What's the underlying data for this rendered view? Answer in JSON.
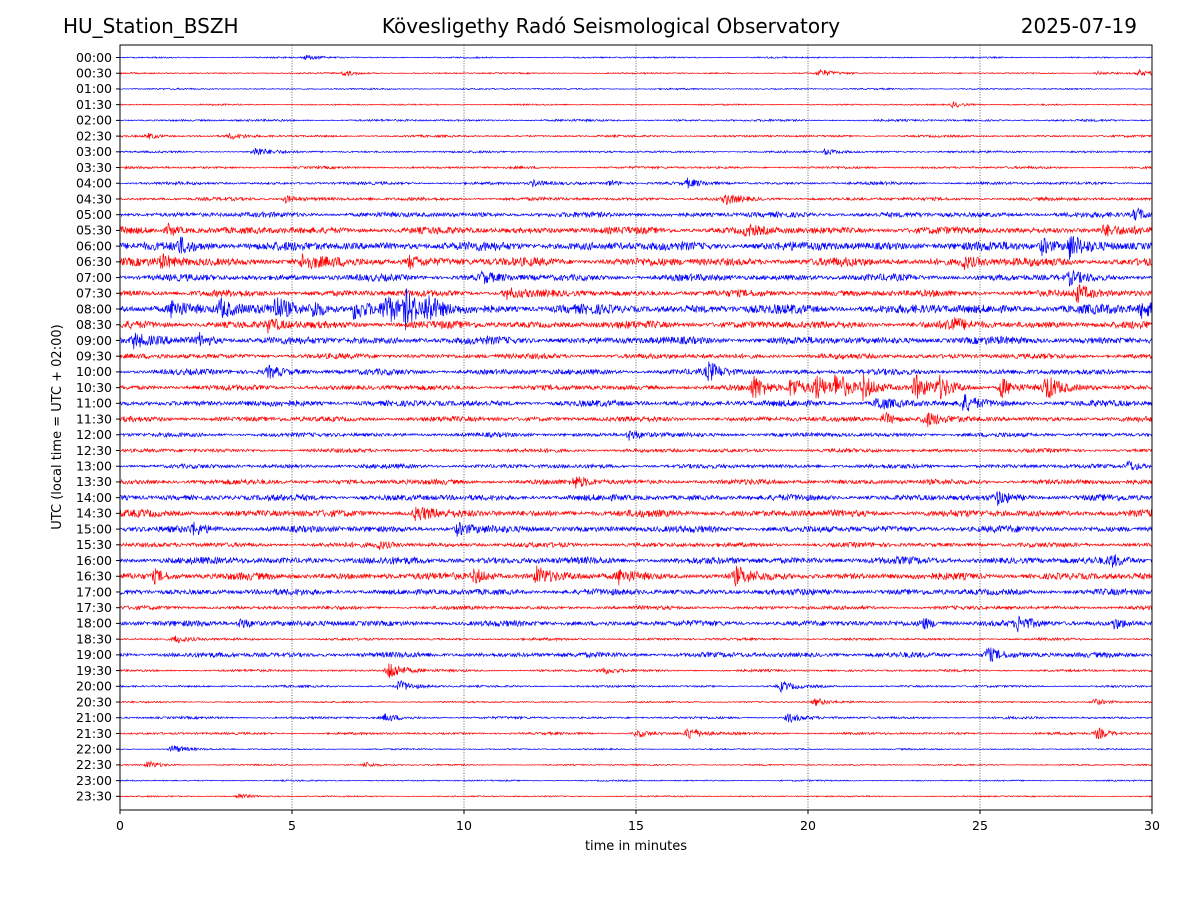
{
  "header": {
    "station": "HU_Station_BSZH",
    "title": "Kövesligethy Radó Seismological Observatory",
    "date": "2025-07-19"
  },
  "colors": {
    "even_rows": "#0000ff",
    "odd_rows": "#ff0000",
    "grid": "#000000"
  },
  "chart_data": {
    "type": "line",
    "title": "Kövesligethy Radó Seismological Observatory",
    "xlabel": "time in minutes",
    "ylabel": "UTC (local time = UTC + 02:00)",
    "xlim": [
      0,
      30
    ],
    "xticks": [
      0,
      5,
      10,
      15,
      20,
      25,
      30
    ],
    "xtick_labels": [
      "0",
      "5",
      "10",
      "15",
      "20",
      "25",
      "30"
    ],
    "grid": "vertical dotted lines at every 5 minutes",
    "rows": [
      "00:00",
      "00:30",
      "01:00",
      "01:30",
      "02:00",
      "02:30",
      "03:00",
      "03:30",
      "04:00",
      "04:30",
      "05:00",
      "05:30",
      "06:00",
      "06:30",
      "07:00",
      "07:30",
      "08:00",
      "08:30",
      "09:00",
      "09:30",
      "10:00",
      "10:30",
      "11:00",
      "11:30",
      "12:00",
      "12:30",
      "13:00",
      "13:30",
      "14:00",
      "14:30",
      "15:00",
      "15:30",
      "16:00",
      "16:30",
      "17:00",
      "17:30",
      "18:00",
      "18:30",
      "19:00",
      "19:30",
      "20:00",
      "20:30",
      "21:00",
      "21:30",
      "22:00",
      "22:30",
      "23:00",
      "23:30"
    ],
    "row_colors": "alternating blue (even rows) / red (odd rows)",
    "noise_level": [
      0.6,
      0.6,
      0.6,
      0.6,
      0.9,
      0.9,
      0.9,
      1.0,
      1.2,
      1.4,
      2.2,
      3.0,
      3.8,
      3.6,
      2.8,
      2.8,
      4.0,
      3.2,
      3.2,
      2.2,
      2.4,
      2.2,
      2.6,
      2.2,
      1.8,
      1.6,
      1.8,
      2.2,
      2.6,
      3.0,
      2.8,
      2.0,
      3.0,
      3.0,
      2.6,
      1.6,
      2.4,
      1.0,
      2.2,
      1.0,
      0.9,
      0.7,
      1.0,
      1.0,
      0.6,
      0.6,
      0.6,
      0.6
    ],
    "events": [
      {
        "row": "00:00",
        "minute": 5.4,
        "amplitude": 3
      },
      {
        "row": "00:30",
        "minute": 6.5,
        "amplitude": 3
      },
      {
        "row": "00:30",
        "minute": 20.3,
        "amplitude": 4
      },
      {
        "row": "00:30",
        "minute": 28.4,
        "amplitude": 2
      },
      {
        "row": "00:30",
        "minute": 29.6,
        "amplitude": 3
      },
      {
        "row": "01:30",
        "minute": 24.2,
        "amplitude": 3
      },
      {
        "row": "02:30",
        "minute": 0.8,
        "amplitude": 3
      },
      {
        "row": "02:30",
        "minute": 3.2,
        "amplitude": 3
      },
      {
        "row": "03:00",
        "minute": 3.9,
        "amplitude": 5
      },
      {
        "row": "03:00",
        "minute": 20.5,
        "amplitude": 3
      },
      {
        "row": "04:00",
        "minute": 12.0,
        "amplitude": 3
      },
      {
        "row": "04:00",
        "minute": 14.2,
        "amplitude": 3
      },
      {
        "row": "04:00",
        "minute": 16.5,
        "amplitude": 4
      },
      {
        "row": "04:30",
        "minute": 4.8,
        "amplitude": 4
      },
      {
        "row": "04:30",
        "minute": 17.6,
        "amplitude": 5
      },
      {
        "row": "05:00",
        "minute": 29.5,
        "amplitude": 7
      },
      {
        "row": "05:30",
        "minute": 1.4,
        "amplitude": 6
      },
      {
        "row": "05:30",
        "minute": 18.2,
        "amplitude": 5
      },
      {
        "row": "05:30",
        "minute": 28.6,
        "amplitude": 5
      },
      {
        "row": "06:00",
        "minute": 1.7,
        "amplitude": 7
      },
      {
        "row": "06:00",
        "minute": 26.8,
        "amplitude": 8
      },
      {
        "row": "06:00",
        "minute": 27.6,
        "amplitude": 12
      },
      {
        "row": "06:30",
        "minute": 1.2,
        "amplitude": 6
      },
      {
        "row": "06:30",
        "minute": 5.3,
        "amplitude": 7
      },
      {
        "row": "06:30",
        "minute": 8.4,
        "amplitude": 6
      },
      {
        "row": "06:30",
        "minute": 24.5,
        "amplitude": 6
      },
      {
        "row": "07:00",
        "minute": 10.5,
        "amplitude": 5
      },
      {
        "row": "07:00",
        "minute": 27.6,
        "amplitude": 6
      },
      {
        "row": "07:30",
        "minute": 11.2,
        "amplitude": 6
      },
      {
        "row": "07:30",
        "minute": 27.8,
        "amplitude": 9
      },
      {
        "row": "08:00",
        "minute": 1.5,
        "amplitude": 9
      },
      {
        "row": "08:00",
        "minute": 2.9,
        "amplitude": 10
      },
      {
        "row": "08:00",
        "minute": 4.5,
        "amplitude": 10
      },
      {
        "row": "08:00",
        "minute": 5.6,
        "amplitude": 9
      },
      {
        "row": "08:00",
        "minute": 6.8,
        "amplitude": 10
      },
      {
        "row": "08:00",
        "minute": 7.7,
        "amplitude": 14
      },
      {
        "row": "08:00",
        "minute": 8.3,
        "amplitude": 15
      },
      {
        "row": "08:00",
        "minute": 8.9,
        "amplitude": 13
      },
      {
        "row": "08:00",
        "minute": 29.7,
        "amplitude": 9
      },
      {
        "row": "08:30",
        "minute": 4.3,
        "amplitude": 6
      },
      {
        "row": "08:30",
        "minute": 24.1,
        "amplitude": 7
      },
      {
        "row": "09:00",
        "minute": 0.4,
        "amplitude": 7
      },
      {
        "row": "09:00",
        "minute": 2.3,
        "amplitude": 6
      },
      {
        "row": "10:00",
        "minute": 4.3,
        "amplitude": 6
      },
      {
        "row": "10:00",
        "minute": 17.1,
        "amplitude": 9
      },
      {
        "row": "10:30",
        "minute": 18.4,
        "amplitude": 12
      },
      {
        "row": "10:30",
        "minute": 19.5,
        "amplitude": 12
      },
      {
        "row": "10:30",
        "minute": 20.2,
        "amplitude": 13
      },
      {
        "row": "10:30",
        "minute": 20.8,
        "amplitude": 14
      },
      {
        "row": "10:30",
        "minute": 21.6,
        "amplitude": 11
      },
      {
        "row": "10:30",
        "minute": 23.1,
        "amplitude": 13
      },
      {
        "row": "10:30",
        "minute": 23.8,
        "amplitude": 10
      },
      {
        "row": "10:30",
        "minute": 25.6,
        "amplitude": 11
      },
      {
        "row": "10:30",
        "minute": 26.9,
        "amplitude": 13
      },
      {
        "row": "11:00",
        "minute": 22.0,
        "amplitude": 7
      },
      {
        "row": "11:00",
        "minute": 24.5,
        "amplitude": 9
      },
      {
        "row": "11:30",
        "minute": 22.2,
        "amplitude": 7
      },
      {
        "row": "11:30",
        "minute": 23.4,
        "amplitude": 8
      },
      {
        "row": "12:00",
        "minute": 14.8,
        "amplitude": 5
      },
      {
        "row": "13:00",
        "minute": 29.3,
        "amplitude": 6
      },
      {
        "row": "13:30",
        "minute": 13.2,
        "amplitude": 6
      },
      {
        "row": "14:00",
        "minute": 25.5,
        "amplitude": 6
      },
      {
        "row": "14:30",
        "minute": 8.6,
        "amplitude": 8
      },
      {
        "row": "15:00",
        "minute": 9.8,
        "amplitude": 6
      },
      {
        "row": "15:00",
        "minute": 2.1,
        "amplitude": 5
      },
      {
        "row": "15:30",
        "minute": 7.5,
        "amplitude": 4
      },
      {
        "row": "16:00",
        "minute": 28.8,
        "amplitude": 5
      },
      {
        "row": "16:30",
        "minute": 1.0,
        "amplitude": 6
      },
      {
        "row": "16:30",
        "minute": 10.3,
        "amplitude": 8
      },
      {
        "row": "16:30",
        "minute": 12.1,
        "amplitude": 9
      },
      {
        "row": "16:30",
        "minute": 14.5,
        "amplitude": 7
      },
      {
        "row": "16:30",
        "minute": 17.9,
        "amplitude": 8
      },
      {
        "row": "18:00",
        "minute": 3.5,
        "amplitude": 6
      },
      {
        "row": "18:00",
        "minute": 23.3,
        "amplitude": 6
      },
      {
        "row": "18:00",
        "minute": 26.1,
        "amplitude": 7
      },
      {
        "row": "18:00",
        "minute": 28.9,
        "amplitude": 5
      },
      {
        "row": "18:30",
        "minute": 1.6,
        "amplitude": 4
      },
      {
        "row": "19:00",
        "minute": 25.2,
        "amplitude": 8
      },
      {
        "row": "19:30",
        "minute": 7.8,
        "amplitude": 11
      },
      {
        "row": "19:30",
        "minute": 14.0,
        "amplitude": 4
      },
      {
        "row": "20:00",
        "minute": 8.1,
        "amplitude": 6
      },
      {
        "row": "20:00",
        "minute": 19.2,
        "amplitude": 5
      },
      {
        "row": "20:30",
        "minute": 20.2,
        "amplitude": 4
      },
      {
        "row": "20:30",
        "minute": 28.3,
        "amplitude": 4
      },
      {
        "row": "21:00",
        "minute": 7.7,
        "amplitude": 4
      },
      {
        "row": "21:00",
        "minute": 19.4,
        "amplitude": 5
      },
      {
        "row": "21:30",
        "minute": 16.5,
        "amplitude": 7
      },
      {
        "row": "21:30",
        "minute": 15.0,
        "amplitude": 4
      },
      {
        "row": "21:30",
        "minute": 28.4,
        "amplitude": 6
      },
      {
        "row": "22:00",
        "minute": 1.5,
        "amplitude": 5
      },
      {
        "row": "22:30",
        "minute": 0.8,
        "amplitude": 4
      },
      {
        "row": "22:30",
        "minute": 7.1,
        "amplitude": 3
      },
      {
        "row": "23:30",
        "minute": 3.4,
        "amplitude": 3
      }
    ]
  }
}
